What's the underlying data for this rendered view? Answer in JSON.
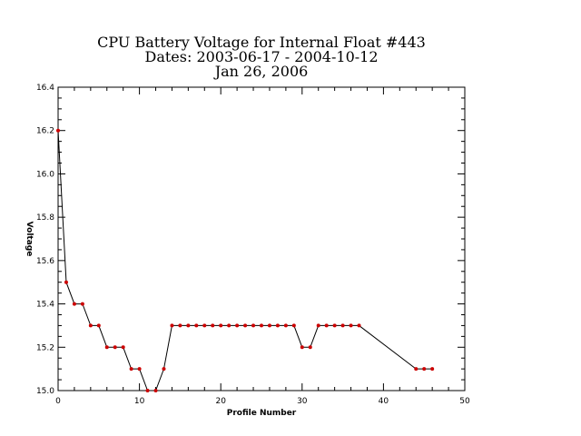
{
  "chart_data": {
    "type": "line",
    "title_lines": [
      "CPU Battery Voltage for Internal Float #443",
      "Dates:  2003-06-17 -  2004-10-12",
      "Jan 26, 2006"
    ],
    "xlabel": "Profile Number",
    "ylabel": "Voltage",
    "xlim": [
      0,
      50
    ],
    "ylim": [
      15.0,
      16.4
    ],
    "x_ticks": [
      0,
      10,
      20,
      30,
      40,
      50
    ],
    "y_ticks": [
      15.0,
      15.2,
      15.4,
      15.6,
      15.8,
      16.0,
      16.2,
      16.4
    ],
    "x_tick_labels": [
      "0",
      "10",
      "20",
      "30",
      "40",
      "50"
    ],
    "y_tick_labels": [
      "15.0",
      "15.2",
      "15.4",
      "15.6",
      "15.8",
      "16.0",
      "16.2",
      "16.4"
    ],
    "x_minor_step": 2,
    "y_minor_step": 0.05,
    "grid": false,
    "colors": {
      "line": "#000000",
      "marker": "#cc0000"
    },
    "series": [
      {
        "x": [
          0,
          1,
          2,
          3,
          4,
          5,
          6,
          7,
          8,
          9,
          10,
          11,
          12,
          13,
          14,
          15,
          16,
          17,
          18,
          19,
          20,
          21,
          22,
          23,
          24,
          25,
          26,
          27,
          28,
          29,
          30,
          31,
          32,
          33,
          34,
          35,
          36,
          37,
          44,
          45,
          46
        ],
        "y": [
          16.2,
          15.5,
          15.4,
          15.4,
          15.3,
          15.3,
          15.2,
          15.2,
          15.2,
          15.1,
          15.1,
          15.0,
          15.0,
          15.1,
          15.3,
          15.3,
          15.3,
          15.3,
          15.3,
          15.3,
          15.3,
          15.3,
          15.3,
          15.3,
          15.3,
          15.3,
          15.3,
          15.3,
          15.3,
          15.3,
          15.2,
          15.2,
          15.3,
          15.3,
          15.3,
          15.3,
          15.3,
          15.3,
          15.1,
          15.1,
          15.1
        ]
      }
    ]
  }
}
